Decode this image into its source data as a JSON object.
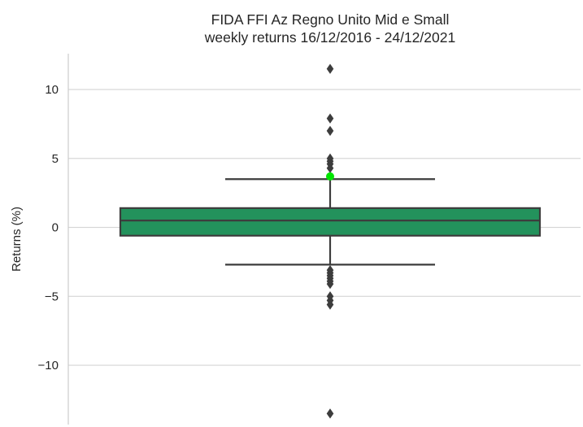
{
  "chart_data": {
    "type": "box",
    "title": [
      "FIDA FFI Az Regno Unito Mid e Small",
      "weekly returns 16/12/2016 - 24/12/2021"
    ],
    "xlabel": "",
    "ylabel": "Returns (%)",
    "ylim": [
      -14.3,
      12.6
    ],
    "yticks": [
      10,
      5,
      0,
      -5,
      -10
    ],
    "ytick_labels": [
      "10",
      "5",
      "0",
      "−5",
      "−10"
    ],
    "grid": true,
    "box": {
      "q1": -0.6,
      "median": 0.5,
      "q3": 1.4,
      "whisker_low": -2.7,
      "whisker_high": 3.5,
      "fill_color": "#23925c",
      "line_color": "#3d3d3d"
    },
    "outliers": [
      11.5,
      7.9,
      7.0,
      5.0,
      4.8,
      4.6,
      4.3,
      -3.1,
      -3.3,
      -3.5,
      -3.7,
      -3.9,
      -4.1,
      -5.0,
      -5.3,
      -5.6,
      -13.5
    ],
    "highlight": {
      "value": 3.7,
      "color": "#00e600"
    }
  }
}
